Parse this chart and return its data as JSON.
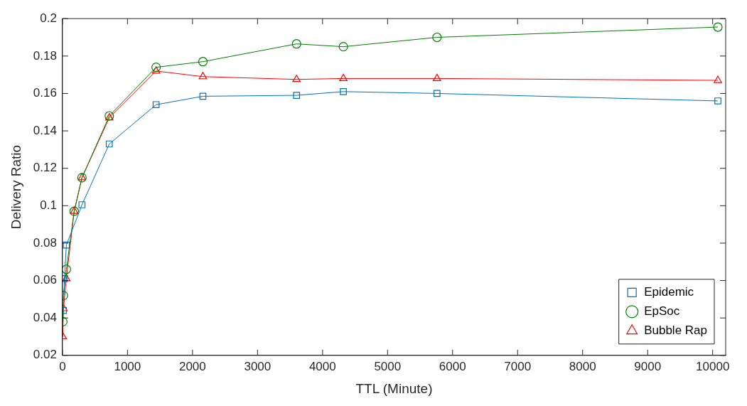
{
  "chart_data": {
    "type": "line",
    "xlabel": "TTL (Minute)",
    "ylabel": "Delivery Ratio",
    "xlim": [
      0,
      10200
    ],
    "xticks": [
      0,
      1000,
      2000,
      3000,
      4000,
      5000,
      6000,
      7000,
      8000,
      9000,
      10000
    ],
    "ylim": [
      0.02,
      0.2
    ],
    "yticks": [
      0.02,
      0.04,
      0.06,
      0.08,
      0.1,
      0.12,
      0.14,
      0.16,
      0.18,
      0.2
    ],
    "grid": false,
    "legend": "bottom right",
    "line_style": "solid",
    "series": [
      {
        "name": "Epidemic",
        "color": "#0072bd",
        "marker": "square",
        "x": [
          15,
          30,
          60,
          300,
          720,
          1440,
          2160,
          3600,
          4320,
          5760,
          10080
        ],
        "values": [
          0.044,
          0.061,
          0.079,
          0.1005,
          0.133,
          0.154,
          0.1585,
          0.159,
          0.161,
          0.16,
          0.156
        ]
      },
      {
        "name": "EpSoc",
        "color": "#008000",
        "marker": "circle",
        "x": [
          5,
          15,
          60,
          180,
          300,
          720,
          1440,
          2160,
          3600,
          4320,
          5760,
          10080
        ],
        "values": [
          0.038,
          0.052,
          0.066,
          0.097,
          0.115,
          0.148,
          0.174,
          0.177,
          0.1865,
          0.185,
          0.19,
          0.1955
        ]
      },
      {
        "name": "Bubble Rap",
        "color": "#ff0000",
        "marker": "triangle",
        "x": [
          5,
          15,
          60,
          180,
          300,
          720,
          1440,
          2160,
          3600,
          4320,
          5760,
          10080
        ],
        "values": [
          0.03,
          0.045,
          0.061,
          0.097,
          0.115,
          0.147,
          0.172,
          0.169,
          0.1675,
          0.168,
          0.168,
          0.167
        ]
      }
    ]
  }
}
